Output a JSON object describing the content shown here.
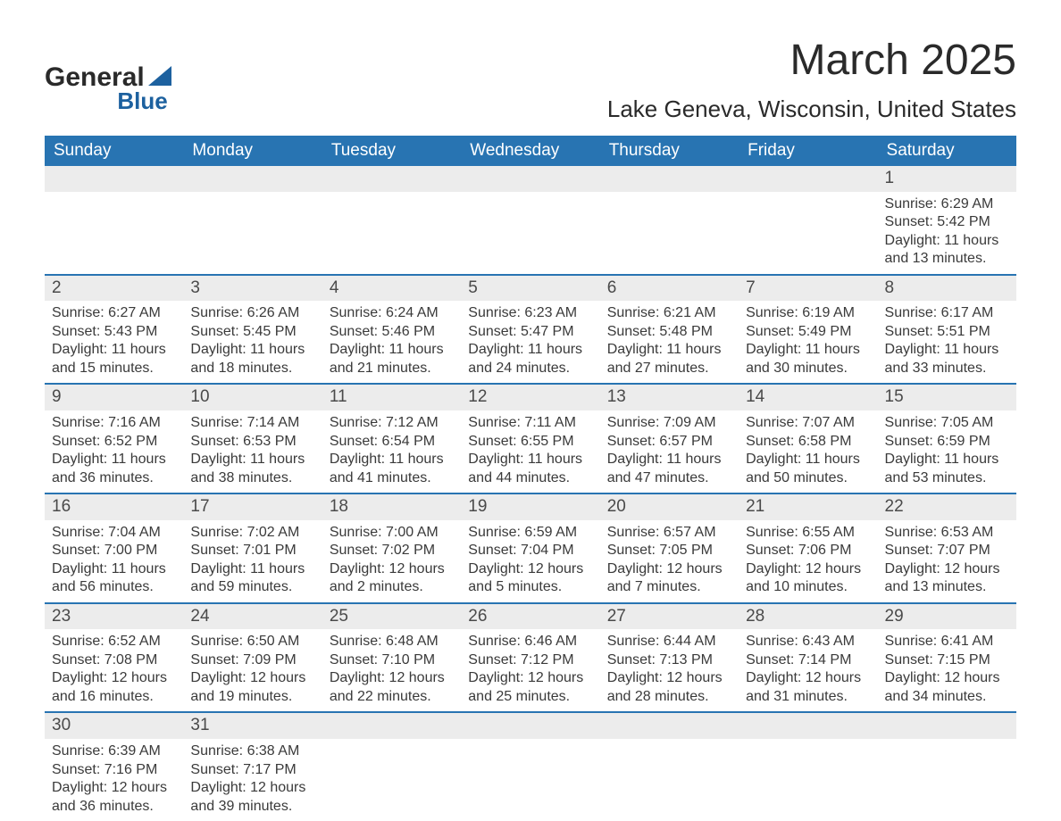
{
  "brand": {
    "line1": "General",
    "line2": "Blue"
  },
  "title": "March 2025",
  "location": "Lake Geneva, Wisconsin, United States",
  "colors": {
    "header_bg": "#2874b2",
    "header_text": "#ffffff",
    "daynum_bg": "#ececec",
    "border": "#2874b2",
    "body_text": "#3a3a3a",
    "brand_accent": "#1d619f"
  },
  "typography": {
    "title_fontsize": 48,
    "location_fontsize": 26,
    "header_fontsize": 19,
    "daynum_fontsize": 19,
    "data_fontsize": 16
  },
  "weekdays": [
    "Sunday",
    "Monday",
    "Tuesday",
    "Wednesday",
    "Thursday",
    "Friday",
    "Saturday"
  ],
  "weeks": [
    [
      null,
      null,
      null,
      null,
      null,
      null,
      {
        "n": "1",
        "sunrise": "6:29 AM",
        "sunset": "5:42 PM",
        "daylight": "11 hours and 13 minutes."
      }
    ],
    [
      {
        "n": "2",
        "sunrise": "6:27 AM",
        "sunset": "5:43 PM",
        "daylight": "11 hours and 15 minutes."
      },
      {
        "n": "3",
        "sunrise": "6:26 AM",
        "sunset": "5:45 PM",
        "daylight": "11 hours and 18 minutes."
      },
      {
        "n": "4",
        "sunrise": "6:24 AM",
        "sunset": "5:46 PM",
        "daylight": "11 hours and 21 minutes."
      },
      {
        "n": "5",
        "sunrise": "6:23 AM",
        "sunset": "5:47 PM",
        "daylight": "11 hours and 24 minutes."
      },
      {
        "n": "6",
        "sunrise": "6:21 AM",
        "sunset": "5:48 PM",
        "daylight": "11 hours and 27 minutes."
      },
      {
        "n": "7",
        "sunrise": "6:19 AM",
        "sunset": "5:49 PM",
        "daylight": "11 hours and 30 minutes."
      },
      {
        "n": "8",
        "sunrise": "6:17 AM",
        "sunset": "5:51 PM",
        "daylight": "11 hours and 33 minutes."
      }
    ],
    [
      {
        "n": "9",
        "sunrise": "7:16 AM",
        "sunset": "6:52 PM",
        "daylight": "11 hours and 36 minutes."
      },
      {
        "n": "10",
        "sunrise": "7:14 AM",
        "sunset": "6:53 PM",
        "daylight": "11 hours and 38 minutes."
      },
      {
        "n": "11",
        "sunrise": "7:12 AM",
        "sunset": "6:54 PM",
        "daylight": "11 hours and 41 minutes."
      },
      {
        "n": "12",
        "sunrise": "7:11 AM",
        "sunset": "6:55 PM",
        "daylight": "11 hours and 44 minutes."
      },
      {
        "n": "13",
        "sunrise": "7:09 AM",
        "sunset": "6:57 PM",
        "daylight": "11 hours and 47 minutes."
      },
      {
        "n": "14",
        "sunrise": "7:07 AM",
        "sunset": "6:58 PM",
        "daylight": "11 hours and 50 minutes."
      },
      {
        "n": "15",
        "sunrise": "7:05 AM",
        "sunset": "6:59 PM",
        "daylight": "11 hours and 53 minutes."
      }
    ],
    [
      {
        "n": "16",
        "sunrise": "7:04 AM",
        "sunset": "7:00 PM",
        "daylight": "11 hours and 56 minutes."
      },
      {
        "n": "17",
        "sunrise": "7:02 AM",
        "sunset": "7:01 PM",
        "daylight": "11 hours and 59 minutes."
      },
      {
        "n": "18",
        "sunrise": "7:00 AM",
        "sunset": "7:02 PM",
        "daylight": "12 hours and 2 minutes."
      },
      {
        "n": "19",
        "sunrise": "6:59 AM",
        "sunset": "7:04 PM",
        "daylight": "12 hours and 5 minutes."
      },
      {
        "n": "20",
        "sunrise": "6:57 AM",
        "sunset": "7:05 PM",
        "daylight": "12 hours and 7 minutes."
      },
      {
        "n": "21",
        "sunrise": "6:55 AM",
        "sunset": "7:06 PM",
        "daylight": "12 hours and 10 minutes."
      },
      {
        "n": "22",
        "sunrise": "6:53 AM",
        "sunset": "7:07 PM",
        "daylight": "12 hours and 13 minutes."
      }
    ],
    [
      {
        "n": "23",
        "sunrise": "6:52 AM",
        "sunset": "7:08 PM",
        "daylight": "12 hours and 16 minutes."
      },
      {
        "n": "24",
        "sunrise": "6:50 AM",
        "sunset": "7:09 PM",
        "daylight": "12 hours and 19 minutes."
      },
      {
        "n": "25",
        "sunrise": "6:48 AM",
        "sunset": "7:10 PM",
        "daylight": "12 hours and 22 minutes."
      },
      {
        "n": "26",
        "sunrise": "6:46 AM",
        "sunset": "7:12 PM",
        "daylight": "12 hours and 25 minutes."
      },
      {
        "n": "27",
        "sunrise": "6:44 AM",
        "sunset": "7:13 PM",
        "daylight": "12 hours and 28 minutes."
      },
      {
        "n": "28",
        "sunrise": "6:43 AM",
        "sunset": "7:14 PM",
        "daylight": "12 hours and 31 minutes."
      },
      {
        "n": "29",
        "sunrise": "6:41 AM",
        "sunset": "7:15 PM",
        "daylight": "12 hours and 34 minutes."
      }
    ],
    [
      {
        "n": "30",
        "sunrise": "6:39 AM",
        "sunset": "7:16 PM",
        "daylight": "12 hours and 36 minutes."
      },
      {
        "n": "31",
        "sunrise": "6:38 AM",
        "sunset": "7:17 PM",
        "daylight": "12 hours and 39 minutes."
      },
      null,
      null,
      null,
      null,
      null
    ]
  ],
  "labels": {
    "sunrise_prefix": "Sunrise: ",
    "sunset_prefix": "Sunset: ",
    "daylight_prefix": "Daylight: "
  }
}
